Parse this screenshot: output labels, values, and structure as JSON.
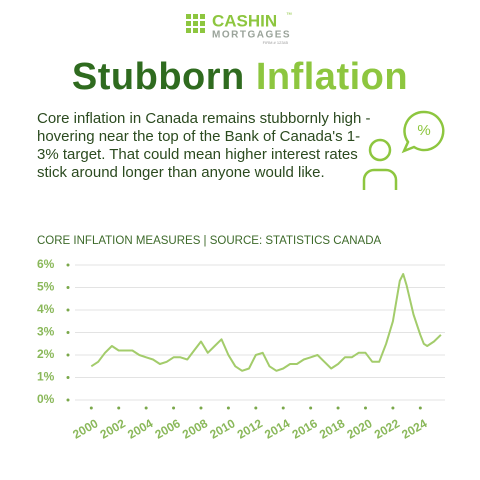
{
  "logo": {
    "name": "CASHIN",
    "trademark": "™",
    "subtitle": "MORTGAGES",
    "firm": "FIRM # 12345"
  },
  "headline": {
    "part1": "Stubborn",
    "part2": "Inflation"
  },
  "body": "Core inflation in Canada remains stubbornly high - hovering near the top of the Bank of Canada's 1-3% target. That could mean higher interest rates stick around longer than anyone would like.",
  "icon_text": "%",
  "chart_data": {
    "type": "line",
    "title": "CORE INFLATION MEASURES | SOURCE: STATISTICS CANADA",
    "color": "#a3cc6b",
    "x": [
      2000,
      2000.5,
      2001,
      2001.5,
      2002,
      2002.5,
      2003,
      2003.5,
      2004,
      2004.5,
      2005,
      2005.5,
      2006,
      2006.5,
      2007,
      2007.5,
      2008,
      2008.5,
      2009,
      2009.5,
      2010,
      2010.5,
      2011,
      2011.5,
      2012,
      2012.5,
      2013,
      2013.5,
      2014,
      2014.5,
      2015,
      2015.5,
      2016,
      2016.5,
      2017,
      2017.5,
      2018,
      2018.5,
      2019,
      2019.5,
      2020,
      2020.5,
      2021,
      2021.5,
      2022,
      2022.5,
      2022.75,
      2023,
      2023.5,
      2024,
      2024.25,
      2024.5,
      2025,
      2025.5
    ],
    "values": [
      1.5,
      1.7,
      2.1,
      2.4,
      2.2,
      2.2,
      2.2,
      2.0,
      1.9,
      1.8,
      1.6,
      1.7,
      1.9,
      1.9,
      1.8,
      2.2,
      2.6,
      2.1,
      2.4,
      2.7,
      2.0,
      1.5,
      1.3,
      1.4,
      2.0,
      2.1,
      1.5,
      1.3,
      1.4,
      1.6,
      1.6,
      1.8,
      1.9,
      2.0,
      1.7,
      1.4,
      1.6,
      1.9,
      1.9,
      2.1,
      2.1,
      1.7,
      1.7,
      2.5,
      3.5,
      5.3,
      5.6,
      5.1,
      3.8,
      2.9,
      2.5,
      2.4,
      2.6,
      2.9
    ],
    "xlim": [
      1998.3,
      2025.8
    ],
    "xticks": [
      2000,
      2002,
      2004,
      2006,
      2008,
      2010,
      2012,
      2014,
      2016,
      2018,
      2020,
      2022,
      2024
    ],
    "ylim": [
      0,
      6
    ],
    "yticks": [
      {
        "value": 0,
        "label": "0%"
      },
      {
        "value": 1,
        "label": "1%"
      },
      {
        "value": 2,
        "label": "2%"
      },
      {
        "value": 3,
        "label": "3%"
      },
      {
        "value": 4,
        "label": "4%"
      },
      {
        "value": 5,
        "label": "5%"
      },
      {
        "value": 6,
        "label": "6%"
      }
    ],
    "grid": true
  }
}
